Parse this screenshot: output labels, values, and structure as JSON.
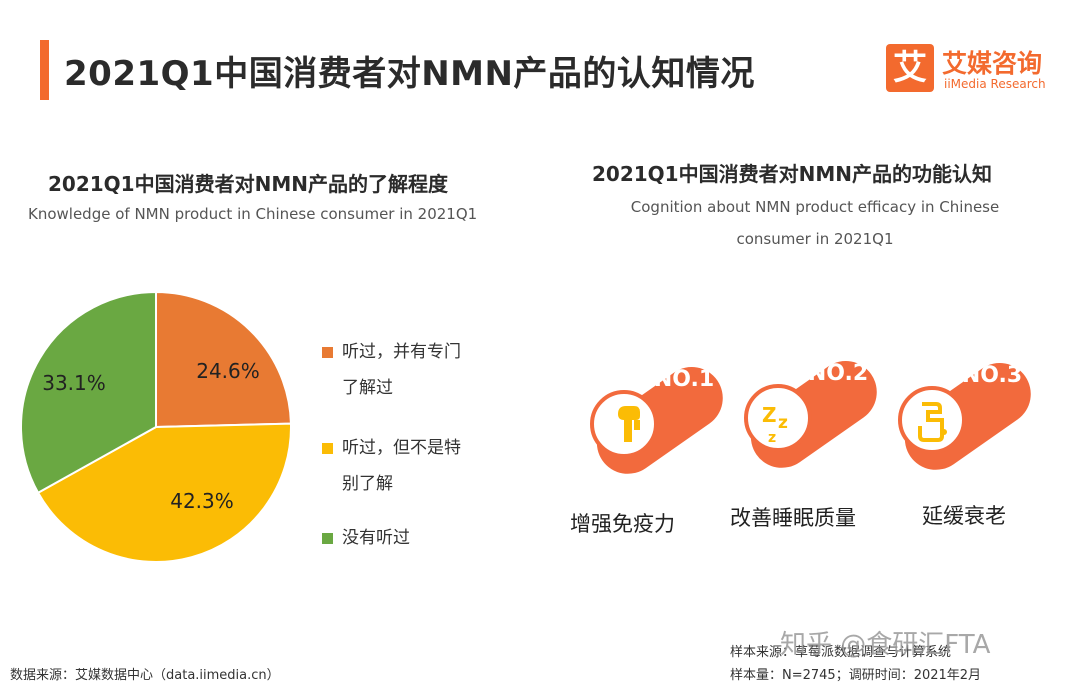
{
  "header": {
    "title": "2021Q1中国消费者对NMN产品的认知情况",
    "logo_mark": "艾",
    "logo_cn": "艾媒咨询",
    "logo_en": "iiMedia Research",
    "accent_color": "#f36a2e"
  },
  "left_chart": {
    "title_cn": "2021Q1中国消费者对NMN产品的了解程度",
    "title_en": "Knowledge of NMN product in Chinese consumer in 2021Q1"
  },
  "right_chart": {
    "title_cn": "2021Q1中国消费者对NMN产品的功能认知",
    "title_en_line1": "Cognition about NMN product efficacy in Chinese",
    "title_en_line2": "consumer in 2021Q1"
  },
  "chart_data": [
    {
      "type": "pie",
      "title": "2021Q1中国消费者对NMN产品的了解程度",
      "categories": [
        "听过，并有专门了解过",
        "听过，但不是特别了解",
        "没有听过"
      ],
      "legend_lines": [
        [
          "听过，并有专门",
          "了解过"
        ],
        [
          "听过，但不是特",
          "别了解"
        ],
        [
          "没有听过"
        ]
      ],
      "values": [
        24.6,
        42.3,
        33.1
      ],
      "labels": [
        "24.6%",
        "42.3%",
        "33.1%"
      ],
      "colors": [
        "#e87a33",
        "#fbbc05",
        "#6aa842"
      ],
      "legend": "right"
    },
    {
      "type": "table",
      "title": "2021Q1中国消费者对NMN产品的功能认知",
      "items": [
        {
          "rank": "NO.1",
          "name": "增强免疫力",
          "icon": "arm-strength-icon"
        },
        {
          "rank": "NO.2",
          "name": "改善睡眠质量",
          "icon": "sleep-zzz-icon"
        },
        {
          "rank": "NO.3",
          "name": "延缓衰老",
          "icon": "walking-cane-icon"
        }
      ],
      "badge_color": "#f26a3d"
    }
  ],
  "footer": {
    "source": "数据来源：艾媒数据中心（data.iimedia.cn）",
    "sample_source": "样本来源：草莓派数据调查与计算系统",
    "sample_size": "样本量：N=2745；调研时间：2021年2月",
    "watermark": "知乎 @食研汇FTA"
  }
}
